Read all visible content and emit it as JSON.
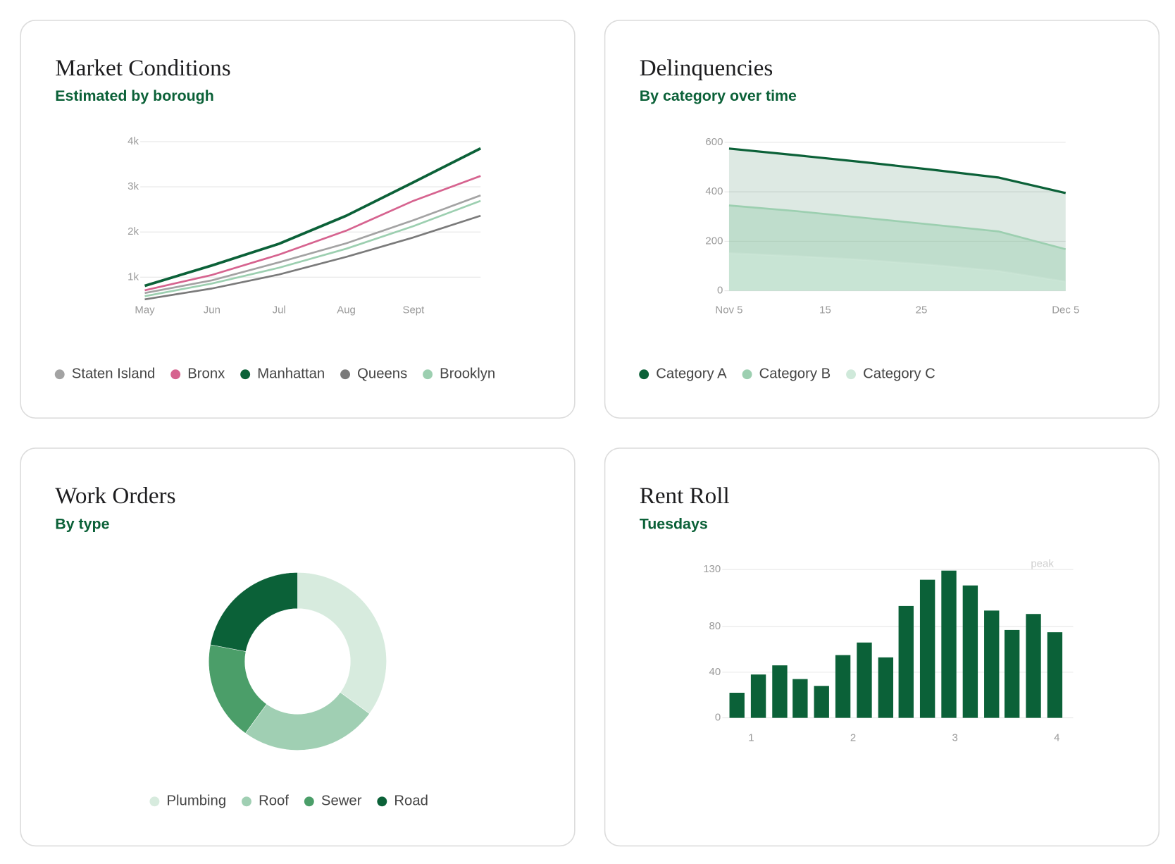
{
  "chart_data": [
    {
      "type": "line",
      "title": "Market Conditions",
      "subtitle": "Estimated by borough",
      "categories": [
        "May",
        "Jun",
        "Jul",
        "Aug",
        "Sept",
        null
      ],
      "ylim": [
        500,
        4000
      ],
      "yticks": [
        {
          "value": 1000,
          "label": "1k"
        },
        {
          "value": 2000,
          "label": "2k"
        },
        {
          "value": 3000,
          "label": "3k"
        },
        {
          "value": 4000,
          "label": "4k"
        }
      ],
      "grid": true,
      "series": [
        {
          "name": "Staten Island",
          "color": "#a3a3a3",
          "values": [
            650,
            930,
            1330,
            1750,
            2260,
            2810
          ]
        },
        {
          "name": "Bronx",
          "color": "#d6638f",
          "values": [
            710,
            1050,
            1500,
            2030,
            2690,
            3240
          ]
        },
        {
          "name": "Manhattan",
          "color": "#0b6138",
          "values": [
            810,
            1260,
            1740,
            2360,
            3100,
            3850
          ]
        },
        {
          "name": "Queens",
          "color": "#7a7a7a",
          "values": [
            510,
            750,
            1060,
            1450,
            1880,
            2360
          ]
        },
        {
          "name": "Brooklyn",
          "color": "#9ccfb0",
          "values": [
            580,
            860,
            1210,
            1630,
            2130,
            2690
          ]
        }
      ]
    },
    {
      "type": "area",
      "title": "Delinquencies",
      "subtitle": "By category over time",
      "x": [
        0,
        7,
        14,
        21,
        28,
        35
      ],
      "xlim": [
        0,
        35
      ],
      "xticks": [
        {
          "value": 0,
          "label": "Nov 5"
        },
        {
          "value": 10,
          "label": "15"
        },
        {
          "value": 20,
          "label": "25"
        },
        {
          "value": 35,
          "label": "Dec 5"
        }
      ],
      "ylim": [
        0,
        600
      ],
      "yticks": [
        0,
        200,
        400,
        600
      ],
      "grid": true,
      "series": [
        {
          "name": "Category A",
          "color": "#0b6138",
          "values": [
            575,
            548,
            520,
            490,
            458,
            395
          ]
        },
        {
          "name": "Category B",
          "color": "#9ccfb0",
          "values": [
            345,
            322,
            295,
            268,
            240,
            168
          ]
        },
        {
          "name": "Category C",
          "color": "#cfe9da",
          "values": [
            152,
            140,
            125,
            105,
            80,
            37
          ]
        }
      ]
    },
    {
      "type": "pie",
      "title": "Work Orders",
      "subtitle": "By type",
      "categories": [
        "Plumbing",
        "Roof",
        "Sewer",
        "Road"
      ],
      "values": [
        35,
        25,
        18,
        22
      ],
      "colors": [
        "#d7ebde",
        "#a0cfb3",
        "#4b9e69",
        "#0b6138"
      ]
    },
    {
      "type": "bar",
      "title": "Rent Roll",
      "subtitle": "Tuesdays",
      "x": [
        0.86,
        1.07,
        1.28,
        1.48,
        1.69,
        1.9,
        2.11,
        2.32,
        2.52,
        2.73,
        2.94,
        3.15,
        3.36,
        3.56,
        3.77,
        3.98
      ],
      "values": [
        22,
        38,
        46,
        34,
        28,
        55,
        66,
        53,
        98,
        121,
        129,
        116,
        94,
        77,
        91,
        75
      ],
      "color": "#0b6138",
      "xlim": [
        0.76,
        4.16
      ],
      "xticks": [
        1,
        2,
        3,
        4
      ],
      "ylim": [
        0,
        130
      ],
      "yticks": [
        0,
        40,
        80,
        130
      ],
      "grid": true,
      "annotation": "peak"
    }
  ]
}
